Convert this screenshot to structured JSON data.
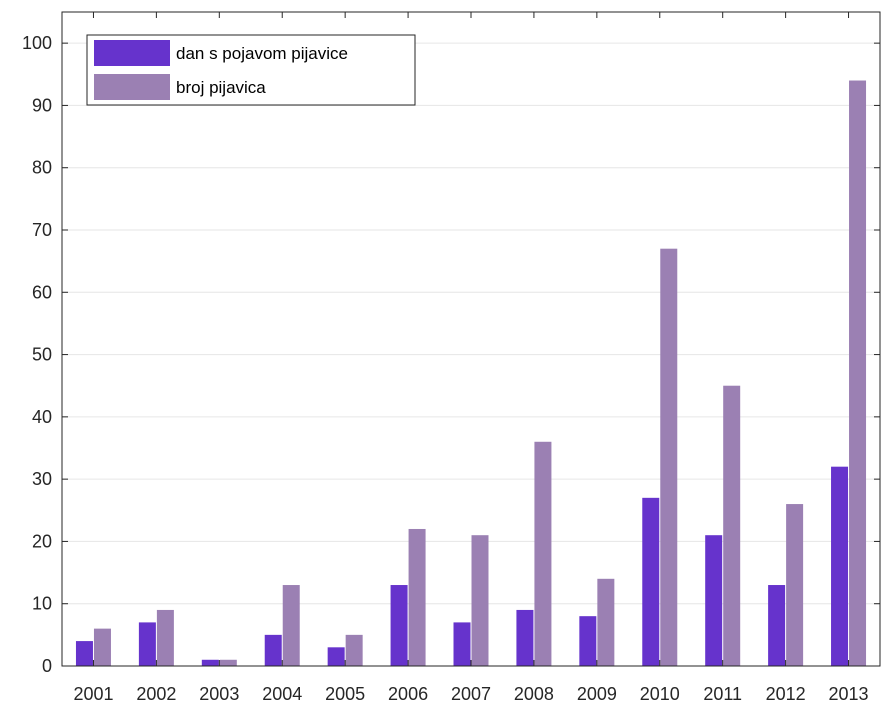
{
  "chart_data": {
    "type": "bar",
    "title": "",
    "xlabel": "",
    "ylabel": "",
    "categories": [
      "2001",
      "2002",
      "2003",
      "2004",
      "2005",
      "2006",
      "2007",
      "2008",
      "2009",
      "2010",
      "2011",
      "2012",
      "2013"
    ],
    "series": [
      {
        "name": "dan s pojavom pijavice",
        "color": "#6633cc",
        "values": [
          4,
          7,
          1,
          5,
          3,
          13,
          7,
          9,
          8,
          27,
          21,
          13,
          32
        ]
      },
      {
        "name": "broj pijavica",
        "color": "#9b80b3",
        "values": [
          6,
          9,
          1,
          13,
          5,
          22,
          21,
          36,
          14,
          67,
          45,
          26,
          94
        ]
      }
    ],
    "ylim": [
      0,
      105
    ],
    "yticks": [
      0,
      10,
      20,
      30,
      40,
      50,
      60,
      70,
      80,
      90,
      100
    ],
    "grid": "horizontal",
    "legend_position": "top-left"
  }
}
